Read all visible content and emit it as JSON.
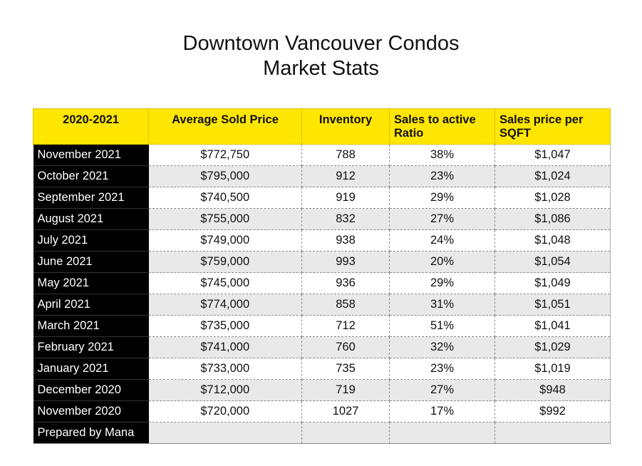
{
  "title_line1": "Downtown Vancouver Condos",
  "title_line2": "Market Stats",
  "chart_data": {
    "type": "table",
    "title": "Downtown Vancouver Condos Market Stats",
    "columns": [
      "2020-2021",
      "Average Sold Price",
      "Inventory",
      "Sales to active Ratio",
      "Sales price per SQFT"
    ],
    "rows": [
      [
        "November 2021",
        "$772,750",
        "788",
        "38%",
        "$1,047"
      ],
      [
        "October 2021",
        "$795,000",
        "912",
        "23%",
        "$1,024"
      ],
      [
        "September 2021",
        "$740,500",
        "919",
        "29%",
        "$1,028"
      ],
      [
        "August 2021",
        "$755,000",
        "832",
        "27%",
        "$1,086"
      ],
      [
        "July 2021",
        "$749,000",
        "938",
        "24%",
        "$1,048"
      ],
      [
        "June 2021",
        "$759,000",
        "993",
        "20%",
        "$1,054"
      ],
      [
        "May 2021",
        "$745,000",
        "936",
        "29%",
        "$1,049"
      ],
      [
        "April 2021",
        "$774,000",
        "858",
        "31%",
        "$1,051"
      ],
      [
        "March 2021",
        "$735,000",
        "712",
        "51%",
        "$1,041"
      ],
      [
        "February 2021",
        "$741,000",
        "760",
        "32%",
        "$1,029"
      ],
      [
        "January 2021",
        "$733,000",
        "735",
        "23%",
        "$1,019"
      ],
      [
        "December 2020",
        "$712,000",
        "719",
        "27%",
        "$948"
      ],
      [
        "November 2020",
        "$720,000",
        "1027",
        "17%",
        "$992"
      ],
      [
        "Prepared by Mana",
        "",
        "",
        "",
        ""
      ]
    ],
    "header_color": "#ffe600",
    "first_column_color": "#000000"
  }
}
